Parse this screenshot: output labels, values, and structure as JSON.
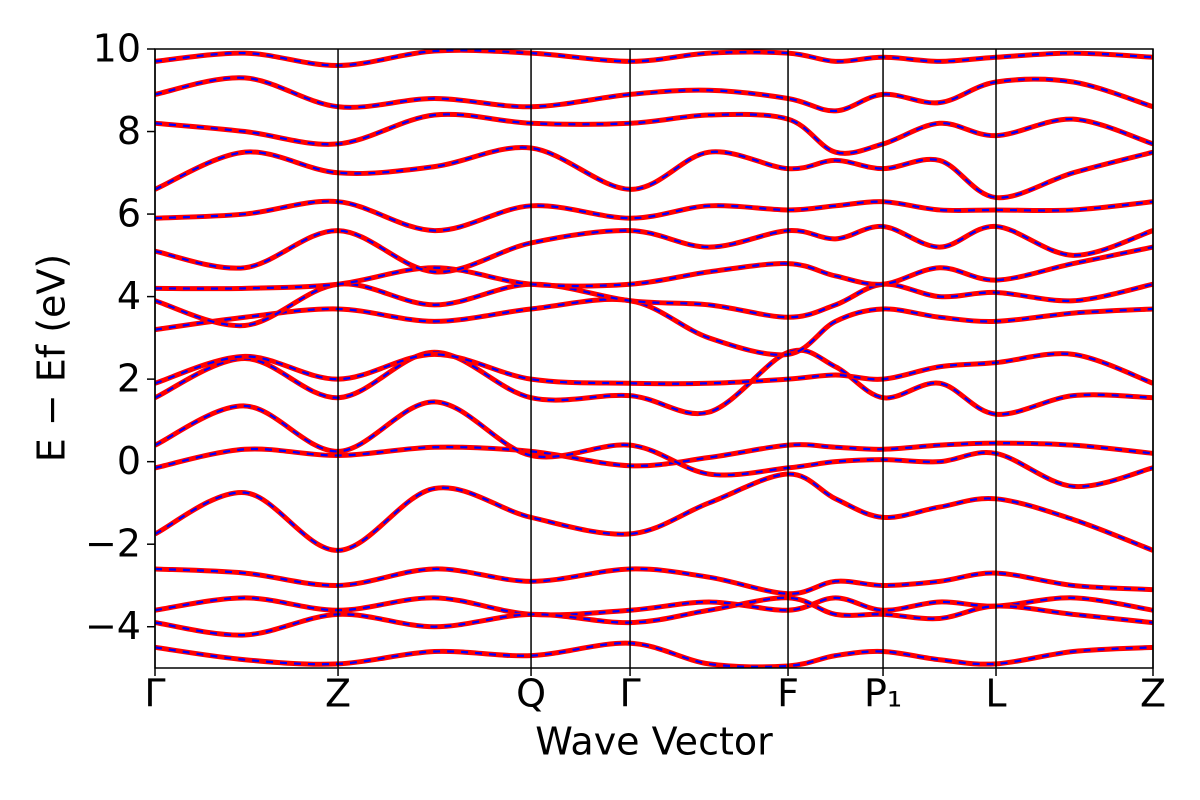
{
  "chart_data": {
    "type": "line",
    "xlabel": "Wave Vector",
    "ylabel": "E − Ef (eV)",
    "x": [
      0,
      0.09,
      0.1834,
      0.28,
      0.3768,
      0.476,
      0.555,
      0.6343,
      0.6819,
      0.7295,
      0.7861,
      0.8427,
      0.92,
      1
    ],
    "xlim": [
      0,
      1
    ],
    "xticks": [
      {
        "value": 0,
        "label": "Γ"
      },
      {
        "value": 0.1834,
        "label": "Z"
      },
      {
        "value": 0.3768,
        "label": "Q"
      },
      {
        "value": 0.476,
        "label": "Γ"
      },
      {
        "value": 0.6343,
        "label": "F"
      },
      {
        "value": 0.7295,
        "label": "P₁"
      },
      {
        "value": 0.8427,
        "label": "L"
      },
      {
        "value": 1,
        "label": "Z"
      }
    ],
    "ylim": [
      -5,
      10
    ],
    "yticks": [
      {
        "value": -4,
        "label": "−4"
      },
      {
        "value": -2,
        "label": "−2"
      },
      0,
      2,
      4,
      6,
      8,
      10
    ],
    "xgrid": true,
    "overlay": {
      "color": "#0000ff",
      "style": "dashed"
    },
    "series": [
      {
        "color": "#ff0000",
        "values": [
          -1.75,
          -0.75,
          -2.15,
          -0.65,
          -1.35,
          -1.75,
          -1.0,
          -0.3,
          -0.9,
          -1.35,
          -1.1,
          -0.9,
          -1.4,
          -2.15
        ]
      },
      {
        "color": "#ff0000",
        "values": [
          -0.15,
          0.3,
          0.15,
          0.35,
          0.25,
          -0.1,
          0.1,
          0.4,
          0.35,
          0.3,
          0.4,
          0.45,
          0.4,
          0.2
        ]
      },
      {
        "color": "#ff0000",
        "values": [
          0.4,
          1.35,
          0.25,
          1.45,
          0.15,
          0.4,
          -0.3,
          -0.15,
          0.0,
          0.05,
          0.0,
          0.2,
          -0.6,
          -0.15
        ]
      },
      {
        "color": "#ff0000",
        "values": [
          1.55,
          2.5,
          1.55,
          2.65,
          1.55,
          1.6,
          1.2,
          2.65,
          2.3,
          1.55,
          1.9,
          1.15,
          1.6,
          1.55
        ]
      },
      {
        "color": "#ff0000",
        "values": [
          1.9,
          2.55,
          2.0,
          2.6,
          2.0,
          1.9,
          1.9,
          2.0,
          2.1,
          2.0,
          2.3,
          2.4,
          2.6,
          1.9
        ]
      },
      {
        "color": "#ff0000",
        "values": [
          3.2,
          3.5,
          3.7,
          3.4,
          3.7,
          3.9,
          3.0,
          2.6,
          3.4,
          3.7,
          3.5,
          3.4,
          3.6,
          3.7
        ]
      },
      {
        "color": "#ff0000",
        "values": [
          3.9,
          3.3,
          4.3,
          3.8,
          4.3,
          3.9,
          3.8,
          3.5,
          3.8,
          4.3,
          4.0,
          4.1,
          3.9,
          4.3
        ]
      },
      {
        "color": "#ff0000",
        "values": [
          4.2,
          4.2,
          4.3,
          4.7,
          4.3,
          4.3,
          4.6,
          4.8,
          4.5,
          4.3,
          4.7,
          4.4,
          4.8,
          5.2
        ]
      },
      {
        "color": "#ff0000",
        "values": [
          5.1,
          4.7,
          5.6,
          4.6,
          5.3,
          5.6,
          5.2,
          5.6,
          5.4,
          5.7,
          5.2,
          5.7,
          5.0,
          5.6
        ]
      },
      {
        "color": "#ff0000",
        "values": [
          5.9,
          6.0,
          6.3,
          5.6,
          6.2,
          5.9,
          6.2,
          6.1,
          6.2,
          6.3,
          6.1,
          6.1,
          6.1,
          6.3
        ]
      },
      {
        "color": "#ff0000",
        "values": [
          6.6,
          7.5,
          7.0,
          7.15,
          7.6,
          6.6,
          7.5,
          7.1,
          7.3,
          7.1,
          7.3,
          6.4,
          7.0,
          7.5
        ]
      },
      {
        "color": "#ff0000",
        "values": [
          8.2,
          8.0,
          7.7,
          8.4,
          8.2,
          8.2,
          8.4,
          8.3,
          7.5,
          7.7,
          8.2,
          7.9,
          8.3,
          7.7
        ]
      },
      {
        "color": "#ff0000",
        "values": [
          8.9,
          9.3,
          8.6,
          8.8,
          8.6,
          8.9,
          9.0,
          8.8,
          8.5,
          8.9,
          8.7,
          9.2,
          9.2,
          8.6
        ]
      },
      {
        "color": "#ff0000",
        "values": [
          9.7,
          9.9,
          9.6,
          9.95,
          9.9,
          9.7,
          9.9,
          9.9,
          9.7,
          9.8,
          9.7,
          9.8,
          9.9,
          9.8
        ]
      },
      {
        "color": "#ff0000",
        "values": [
          -2.6,
          -2.7,
          -3.0,
          -2.6,
          -2.9,
          -2.6,
          -2.8,
          -3.2,
          -2.9,
          -3.0,
          -2.9,
          -2.7,
          -3.0,
          -3.1
        ]
      },
      {
        "color": "#ff0000",
        "values": [
          -3.6,
          -3.3,
          -3.6,
          -3.3,
          -3.7,
          -3.6,
          -3.4,
          -3.6,
          -3.3,
          -3.6,
          -3.4,
          -3.5,
          -3.3,
          -3.6
        ]
      },
      {
        "color": "#ff0000",
        "values": [
          -3.9,
          -4.2,
          -3.7,
          -4.0,
          -3.7,
          -3.9,
          -3.6,
          -3.3,
          -3.7,
          -3.7,
          -3.8,
          -3.5,
          -3.7,
          -3.9
        ]
      },
      {
        "color": "#ff0000",
        "values": [
          -4.5,
          -4.8,
          -4.9,
          -4.6,
          -4.7,
          -4.4,
          -4.9,
          -4.95,
          -4.7,
          -4.6,
          -4.8,
          -4.9,
          -4.6,
          -4.5
        ]
      }
    ]
  }
}
